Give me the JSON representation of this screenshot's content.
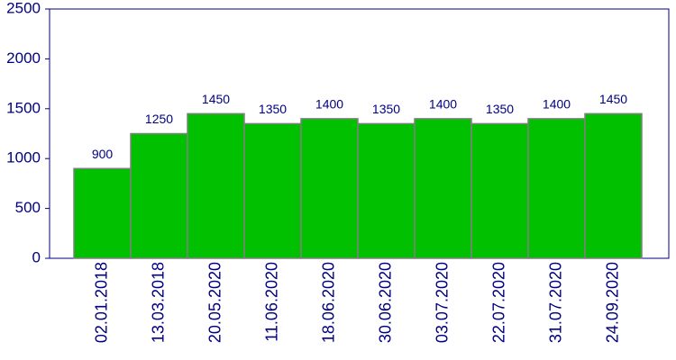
{
  "chart_data": {
    "type": "bar",
    "categories": [
      "02.01.2018",
      "13.03.2018",
      "20.05.2020",
      "11.06.2020",
      "18.06.2020",
      "30.06.2020",
      "03.07.2020",
      "22.07.2020",
      "31.07.2020",
      "24.09.2020"
    ],
    "values": [
      900,
      1250,
      1450,
      1350,
      1400,
      1350,
      1400,
      1350,
      1400,
      1450
    ],
    "color": "#00c000",
    "ylim": [
      0,
      2500
    ],
    "yticks": [
      0,
      500,
      1000,
      1500,
      2000,
      2500
    ],
    "grid": false
  }
}
